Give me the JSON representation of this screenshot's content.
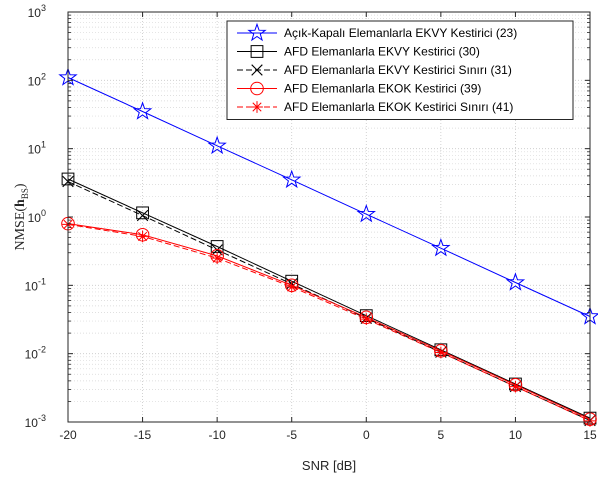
{
  "chart_data": {
    "type": "line",
    "xlabel": "SNR [dB]",
    "ylabel": {
      "prefix": "NMSE(",
      "symbol": "h",
      "subscript": "BS",
      "suffix": ")"
    },
    "yscale": "log",
    "xlim": [
      -20,
      15
    ],
    "ylim": [
      0.001,
      1000
    ],
    "x_ticks": [
      "-20",
      "-15",
      "-10",
      "-5",
      "0",
      "5",
      "10",
      "15"
    ],
    "y_ticks": [
      {
        "base": "10",
        "exp": "-3"
      },
      {
        "base": "10",
        "exp": "-2"
      },
      {
        "base": "10",
        "exp": "-1"
      },
      {
        "base": "10",
        "exp": "0"
      },
      {
        "base": "10",
        "exp": "1"
      },
      {
        "base": "10",
        "exp": "2"
      },
      {
        "base": "10",
        "exp": "3"
      }
    ],
    "grid": true,
    "legend_position": "top-right",
    "x": [
      -20,
      -15,
      -10,
      -5,
      0,
      5,
      10,
      15
    ],
    "series": [
      {
        "name": "Açık-Kapalı Elemanlarla EKVY Kestirici (23)",
        "color": "#0000ff",
        "dash": "solid",
        "marker": "pentagram",
        "values": [
          110,
          35,
          11,
          3.5,
          1.1,
          0.35,
          0.11,
          0.035
        ]
      },
      {
        "name": "AFD Elemanlarla EKVY Kestirici (30)",
        "color": "#000000",
        "dash": "solid",
        "marker": "square",
        "values": [
          3.6,
          1.15,
          0.37,
          0.115,
          0.036,
          0.0114,
          0.0036,
          0.00114
        ]
      },
      {
        "name": "AFD Elemanlarla EKVY Kestirici Sınırı (31)",
        "color": "#000000",
        "dash": "dashed",
        "marker": "x",
        "values": [
          3.3,
          1.05,
          0.33,
          0.105,
          0.033,
          0.0105,
          0.0033,
          0.00105
        ]
      },
      {
        "name": "AFD Elemanlarla EKOK Kestirici (39)",
        "color": "#ff0000",
        "dash": "solid",
        "marker": "circle",
        "values": [
          0.8,
          0.55,
          0.27,
          0.1,
          0.034,
          0.011,
          0.0035,
          0.0011
        ]
      },
      {
        "name": "AFD Elemanlarla EKOK Kestirici Sınırı (41)",
        "color": "#ff0000",
        "dash": "dashed",
        "marker": "asterisk",
        "values": [
          0.78,
          0.52,
          0.25,
          0.095,
          0.032,
          0.0104,
          0.0033,
          0.00104
        ]
      }
    ]
  }
}
